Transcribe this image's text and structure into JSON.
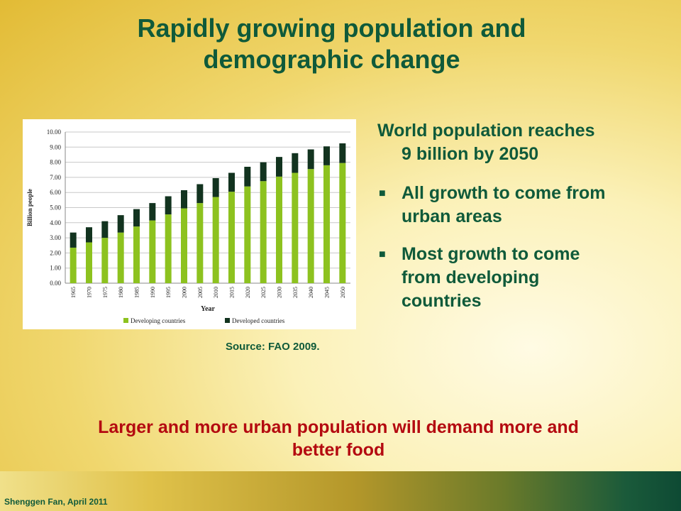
{
  "title_line1": "Rapidly growing population and",
  "title_line2": "demographic change",
  "source": "Source: FAO 2009.",
  "bullets": {
    "lead_line1": "World population reaches",
    "lead_line2": "9 billion by 2050",
    "items": [
      {
        "line1": "All growth to come from",
        "line2": "urban areas"
      },
      {
        "line1": "Most growth to come",
        "line2": "from developing",
        "line3": "countries"
      }
    ]
  },
  "conclusion_line1": "Larger and more urban population will demand more and",
  "conclusion_line2": "better food",
  "footer": "Shenggen Fan, April 2011",
  "chart_data": {
    "type": "bar",
    "stacked": true,
    "xlabel": "Year",
    "ylabel": "Billion people",
    "ylim": [
      0,
      10
    ],
    "yticks": [
      "0.00",
      "1.00",
      "2.00",
      "3.00",
      "4.00",
      "5.00",
      "6.00",
      "7.00",
      "8.00",
      "9.00",
      "10.00"
    ],
    "categories": [
      "1965",
      "1970",
      "1975",
      "1980",
      "1985",
      "1990",
      "1995",
      "2000",
      "2005",
      "2010",
      "2015",
      "2020",
      "2025",
      "2030",
      "2035",
      "2040",
      "2045",
      "2050"
    ],
    "series": [
      {
        "name": "Developing countries",
        "color": "#8dc21f",
        "values": [
          2.35,
          2.7,
          3.0,
          3.35,
          3.75,
          4.15,
          4.55,
          4.95,
          5.3,
          5.7,
          6.05,
          6.4,
          6.75,
          7.05,
          7.3,
          7.55,
          7.8,
          7.95
        ]
      },
      {
        "name": "Developed countries",
        "color": "#12331f",
        "values": [
          1.0,
          1.0,
          1.1,
          1.15,
          1.15,
          1.15,
          1.2,
          1.2,
          1.25,
          1.25,
          1.25,
          1.3,
          1.25,
          1.3,
          1.3,
          1.3,
          1.25,
          1.3
        ]
      }
    ],
    "grid": true,
    "legend": "bottom"
  }
}
